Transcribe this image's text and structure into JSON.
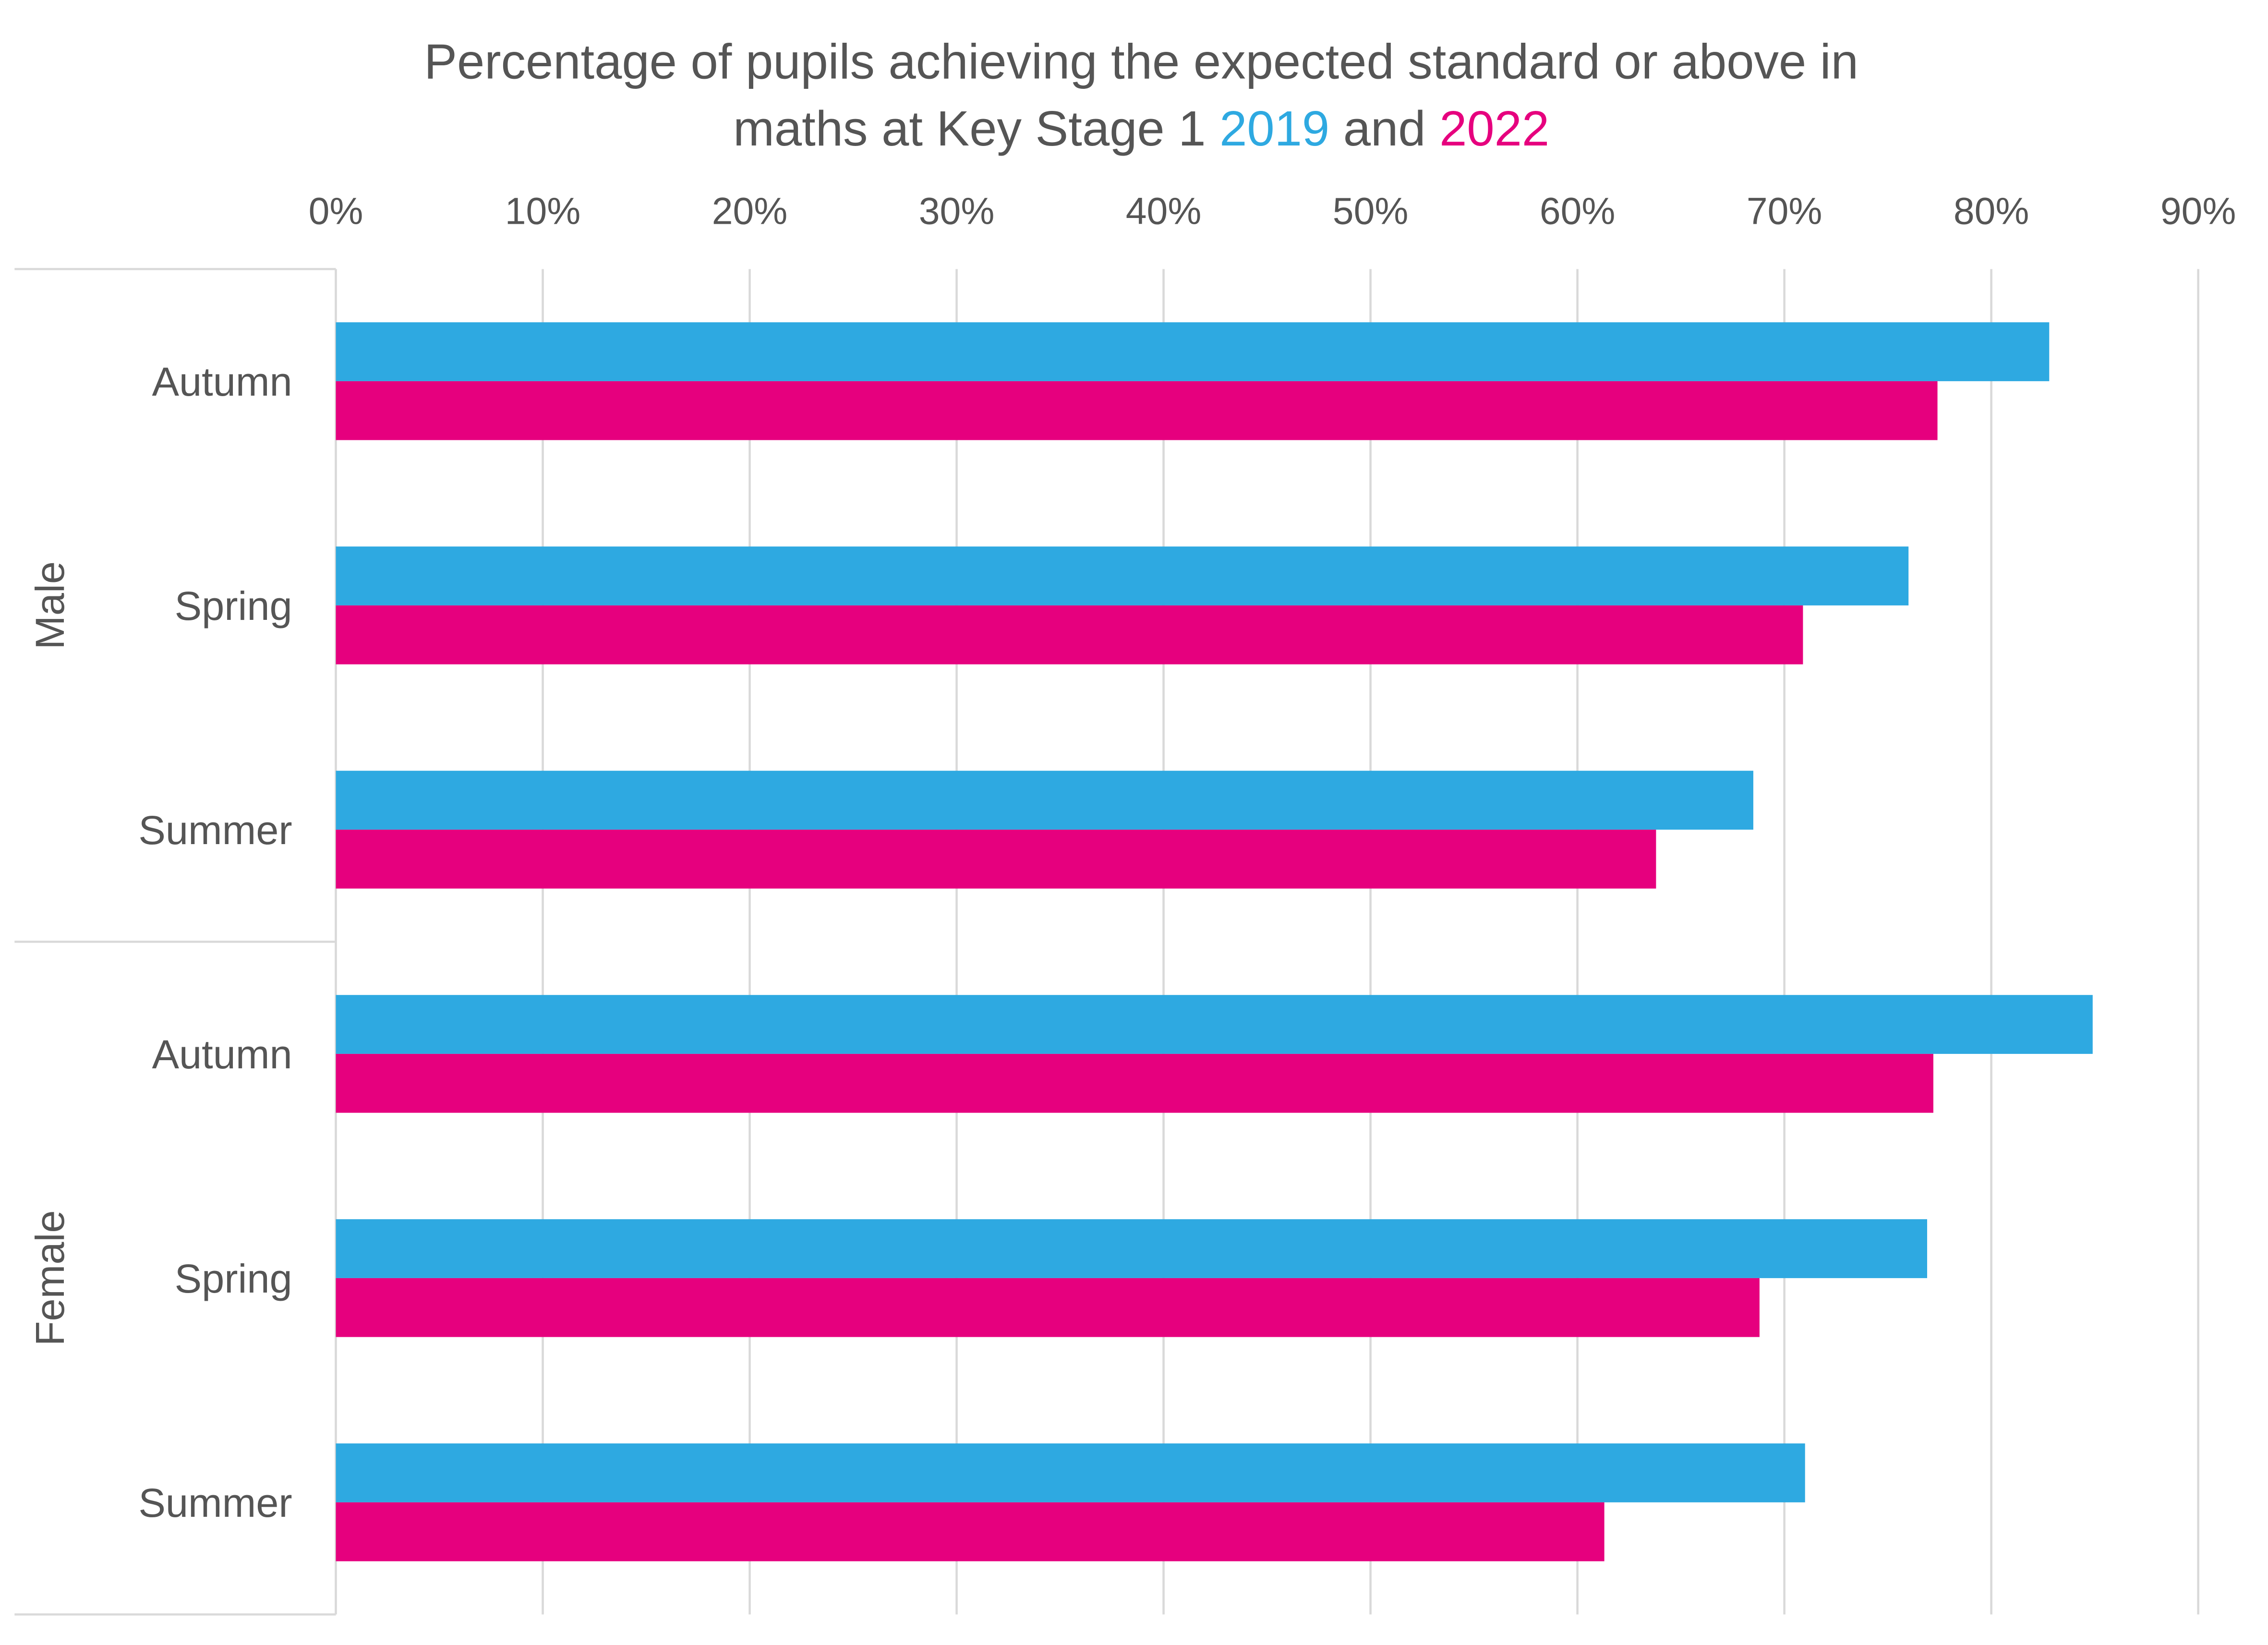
{
  "chart_data": {
    "type": "bar",
    "orientation": "horizontal",
    "title_line1": "Percentage of pupils achieving the expected standard or above in",
    "title_line2_prefix": "maths at Key Stage 1 ",
    "title_year1": "2019",
    "title_and": " and ",
    "title_year2": "2022",
    "xlim": [
      0,
      90
    ],
    "x_ticks": [
      "0%",
      "10%",
      "20%",
      "30%",
      "40%",
      "50%",
      "60%",
      "70%",
      "80%",
      "90%"
    ],
    "x_tick_values": [
      0,
      10,
      20,
      30,
      40,
      50,
      60,
      70,
      80,
      90
    ],
    "axis_position": "top",
    "grid": true,
    "groups": [
      {
        "name": "Male",
        "categories": [
          "Autumn",
          "Spring",
          "Summer"
        ]
      },
      {
        "name": "Female",
        "categories": [
          "Autumn",
          "Spring",
          "Summer"
        ]
      }
    ],
    "series": [
      {
        "name": "2019",
        "color": "#2EA9E1",
        "values": [
          82.8,
          76.0,
          68.5,
          84.9,
          76.9,
          71.0
        ]
      },
      {
        "name": "2022",
        "color": "#E6007E",
        "values": [
          77.4,
          70.9,
          63.8,
          77.2,
          68.8,
          61.3
        ]
      }
    ]
  }
}
